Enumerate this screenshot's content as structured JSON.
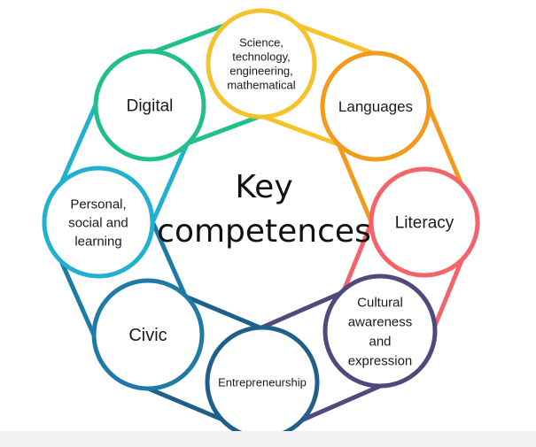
{
  "center": {
    "line1": "Key",
    "line2": "competences"
  },
  "nodes": [
    {
      "id": "stem",
      "lines": [
        "Science,",
        "technology,",
        "engineering,",
        "mathematical"
      ],
      "color": "#f6c12b"
    },
    {
      "id": "languages",
      "lines": [
        "Languages"
      ],
      "color": "#f39a1c"
    },
    {
      "id": "literacy",
      "lines": [
        "Literacy"
      ],
      "color": "#f2646a"
    },
    {
      "id": "cultural",
      "lines": [
        "Cultural",
        "awareness",
        "and",
        "expression"
      ],
      "color": "#4f4a7d"
    },
    {
      "id": "entrepreneurship",
      "lines": [
        "Entrepreneurship"
      ],
      "color": "#1f5f8b"
    },
    {
      "id": "civic",
      "lines": [
        "Civic"
      ],
      "color": "#1f7aa8"
    },
    {
      "id": "personal",
      "lines": [
        "Personal,",
        "social and",
        "learning"
      ],
      "color": "#21b1cf"
    },
    {
      "id": "digital",
      "lines": [
        "Digital"
      ],
      "color": "#21bf8a"
    }
  ]
}
